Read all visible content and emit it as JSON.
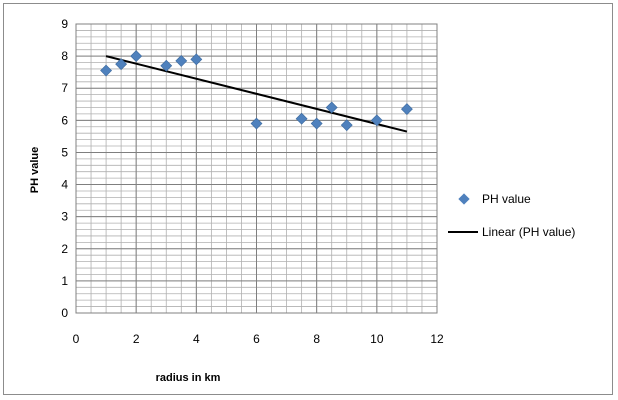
{
  "chart_data": {
    "type": "scatter",
    "title": "",
    "xlabel": "radius in  km",
    "ylabel": "PH value",
    "xlim": [
      0,
      12
    ],
    "ylim": [
      0,
      9
    ],
    "x_major_ticks": [
      0,
      2,
      4,
      6,
      8,
      10,
      12
    ],
    "y_major_ticks": [
      0,
      1,
      2,
      3,
      4,
      5,
      6,
      7,
      8,
      9
    ],
    "x_minor_step": 0.5,
    "y_minor_step": 0.2,
    "grid": true,
    "legend_position": "right",
    "series": [
      {
        "name": "PH value",
        "kind": "scatter",
        "marker": "diamond",
        "color": "#4f81bd",
        "points": [
          {
            "x": 1,
            "y": 7.55
          },
          {
            "x": 1.5,
            "y": 7.75
          },
          {
            "x": 2,
            "y": 8.0
          },
          {
            "x": 3,
            "y": 7.7
          },
          {
            "x": 3.5,
            "y": 7.85
          },
          {
            "x": 4,
            "y": 7.9
          },
          {
            "x": 6,
            "y": 5.9
          },
          {
            "x": 7.5,
            "y": 6.05
          },
          {
            "x": 8,
            "y": 5.9
          },
          {
            "x": 8.5,
            "y": 6.4
          },
          {
            "x": 9,
            "y": 5.85
          },
          {
            "x": 10,
            "y": 6.0
          },
          {
            "x": 11,
            "y": 6.35
          }
        ]
      },
      {
        "name": "Linear (PH value)",
        "kind": "trendline",
        "color": "#000000",
        "points": [
          {
            "x": 1,
            "y": 8.0
          },
          {
            "x": 11,
            "y": 5.65
          }
        ]
      }
    ]
  }
}
